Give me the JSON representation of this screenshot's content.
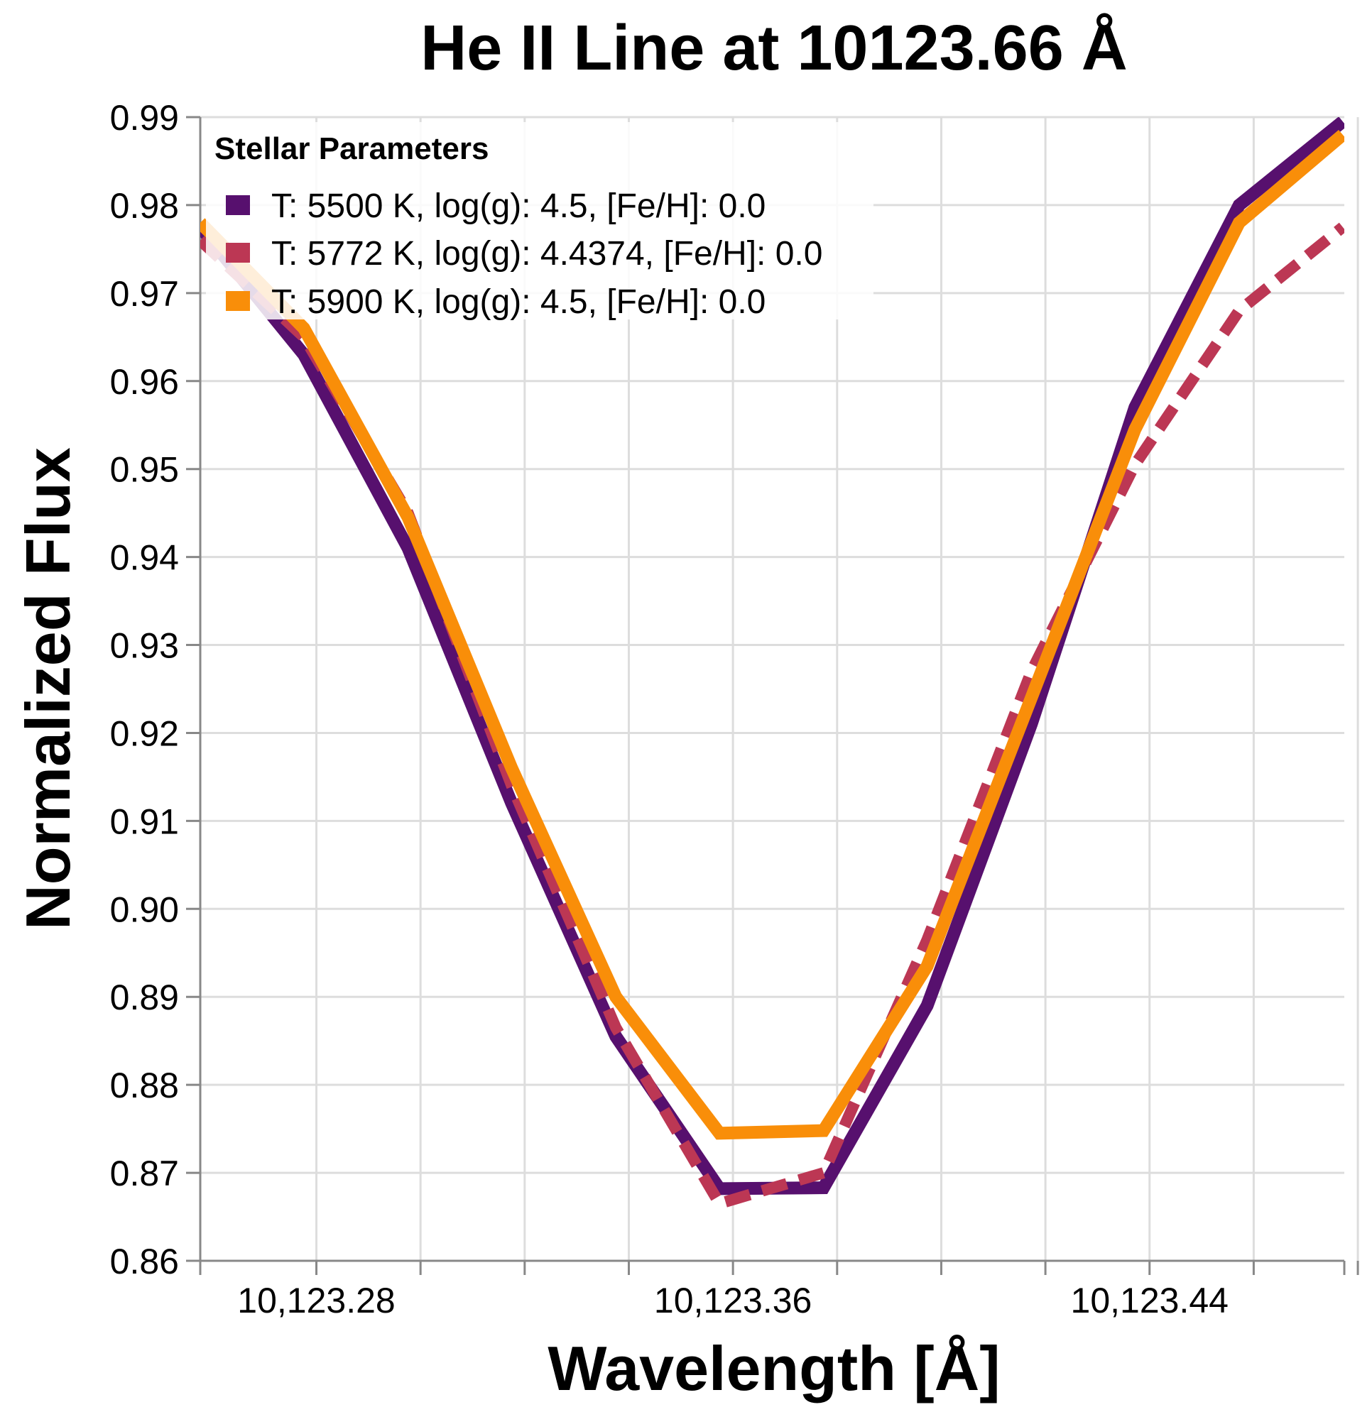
{
  "chart_data": {
    "type": "line",
    "title": "He II Line at 10123.66 Å",
    "xlabel": "Wavelength [Å]",
    "ylabel": "Normalized Flux",
    "xlim": [
      10123.2577,
      10123.4774
    ],
    "ylim": [
      0.86,
      0.99
    ],
    "x_ticks": [
      10123.28,
      10123.3,
      10123.32,
      10123.34,
      10123.36,
      10123.38,
      10123.4,
      10123.42,
      10123.44,
      10123.46,
      10123.48
    ],
    "x_tick_labels": [
      "10,123.28",
      "",
      "",
      "",
      "10,123.36",
      "",
      "",
      "",
      "10,123.44",
      "",
      ""
    ],
    "y_ticks": [
      0.86,
      0.87,
      0.88,
      0.89,
      0.9,
      0.91,
      0.92,
      0.93,
      0.94,
      0.95,
      0.96,
      0.97,
      0.98,
      0.99
    ],
    "y_tick_labels": [
      "0.86",
      "0.87",
      "0.88",
      "0.89",
      "0.90",
      "0.91",
      "0.92",
      "0.93",
      "0.94",
      "0.95",
      "0.96",
      "0.97",
      "0.98",
      "0.99"
    ],
    "grid": true,
    "legend": {
      "title": "Stellar Parameters",
      "position": "top-left"
    },
    "x": [
      10123.2577,
      10123.2776,
      10123.2976,
      10123.3175,
      10123.3375,
      10123.3574,
      10123.3774,
      10123.3973,
      10123.4173,
      10123.4372,
      10123.4572,
      10123.4771
    ],
    "series": [
      {
        "name": "T: 5500 K, log(g): 4.5, [Fe/H]: 0.0",
        "color": "#57106e",
        "style": "solid",
        "values": [
          0.9775,
          0.963,
          0.941,
          0.912,
          0.8855,
          0.8682,
          0.8683,
          0.889,
          0.921,
          0.957,
          0.98,
          0.9895
        ]
      },
      {
        "name": "T: 5772 K, log(g): 4.4374, [Fe/H]: 0.0",
        "color": "#bc3754",
        "style": "dashed",
        "values": [
          0.976,
          0.965,
          0.945,
          0.914,
          0.8865,
          0.8665,
          0.87,
          0.8965,
          0.927,
          0.9505,
          0.968,
          0.9775
        ]
      },
      {
        "name": "T: 5900 K, log(g): 4.5, [Fe/H]: 0.0",
        "color": "#f98e09",
        "style": "solid",
        "values": [
          0.978,
          0.966,
          0.9445,
          0.916,
          0.89,
          0.8745,
          0.8748,
          0.8935,
          0.924,
          0.9545,
          0.978,
          0.988
        ]
      }
    ]
  }
}
